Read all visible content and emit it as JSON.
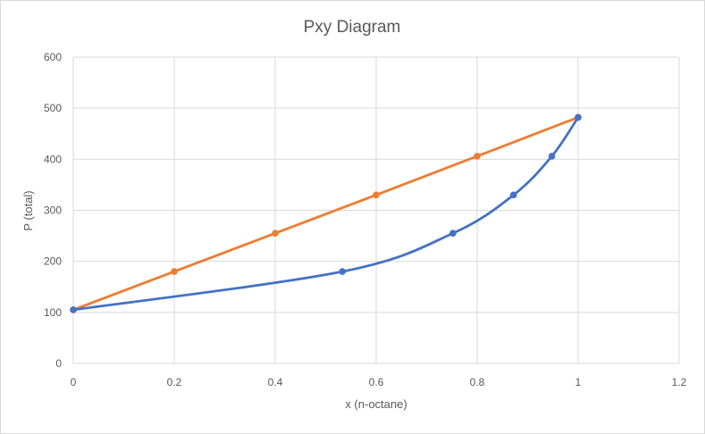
{
  "chart_data": {
    "type": "line",
    "title": "Pxy Diagram",
    "xlabel": "x (n-octane)",
    "ylabel": "P (total)",
    "xlim": [
      0,
      1.2
    ],
    "ylim": [
      0,
      600
    ],
    "x_ticks": [
      "0",
      "0.2",
      "0.4",
      "0.6",
      "0.8",
      "1",
      "1.2"
    ],
    "y_ticks": [
      "0",
      "100",
      "200",
      "300",
      "400",
      "500",
      "600"
    ],
    "grid": true,
    "legend": "none",
    "series": [
      {
        "color": "#ed7d31",
        "smooth": false,
        "points": [
          [
            0,
            105
          ],
          [
            0.2,
            180
          ],
          [
            0.4,
            255
          ],
          [
            0.6,
            330
          ],
          [
            0.8,
            406
          ],
          [
            1.0,
            482
          ]
        ]
      },
      {
        "color": "#4472c4",
        "smooth": true,
        "points": [
          [
            0,
            105
          ],
          [
            0.533,
            180
          ],
          [
            0.752,
            255
          ],
          [
            0.872,
            330
          ],
          [
            0.948,
            406
          ],
          [
            1.0,
            482
          ]
        ]
      }
    ]
  }
}
